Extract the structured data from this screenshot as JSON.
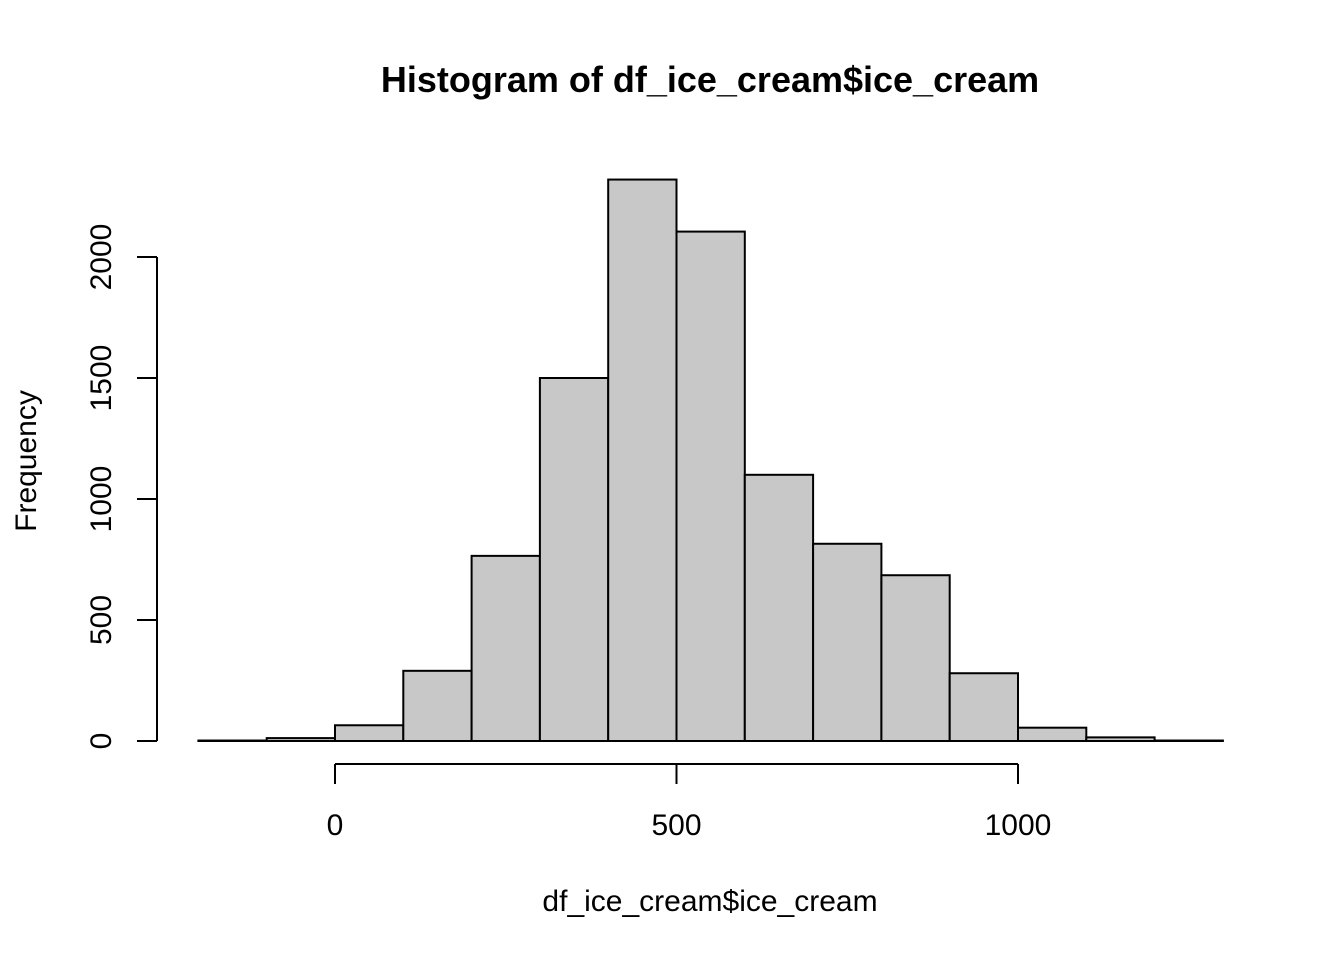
{
  "chart_data": {
    "type": "bar",
    "title": "Histogram of df_ice_cream$ice_cream",
    "xlabel": "df_ice_cream$ice_cream",
    "ylabel": "Frequency",
    "bin_edges": [
      -200,
      -100,
      0,
      100,
      200,
      300,
      400,
      500,
      600,
      700,
      800,
      900,
      1000,
      1100,
      1200,
      1300
    ],
    "values": [
      2,
      12,
      65,
      290,
      765,
      1500,
      2320,
      2105,
      1100,
      815,
      685,
      280,
      55,
      15,
      2
    ],
    "xlim": [
      -200,
      1300
    ],
    "ylim": [
      0,
      2320
    ],
    "x_ticks": [
      0,
      500,
      1000
    ],
    "x_tick_labels": [
      "0",
      "500",
      "1000"
    ],
    "y_ticks": [
      0,
      500,
      1000,
      1500,
      2000
    ],
    "y_tick_labels": [
      "0",
      "500",
      "1000",
      "1500",
      "2000"
    ],
    "bar_color": "#c8c8c8",
    "grid": false
  }
}
